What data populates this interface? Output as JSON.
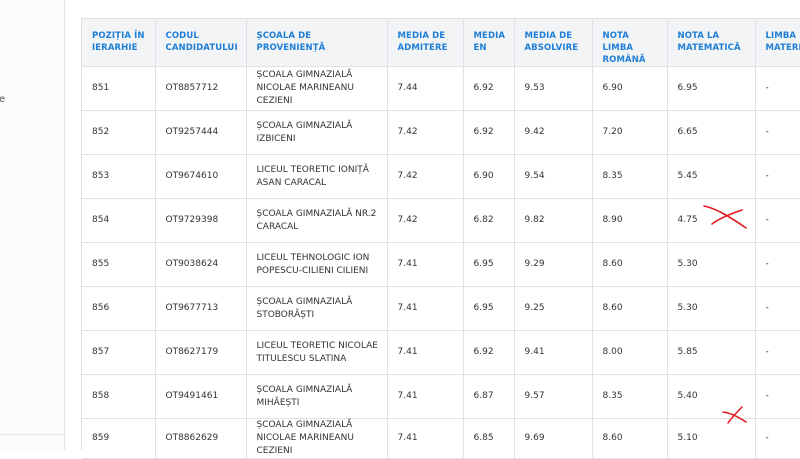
{
  "left_panel": {
    "fragment": "e"
  },
  "table": {
    "headers": [
      "Poziția în ierarhie",
      "Codul candidatului",
      "Școala de proveniență",
      "Media de admitere",
      "Media EN",
      "Media de absolvire",
      "Nota limba română",
      "Nota la matematică",
      "Limba materna"
    ],
    "rows": [
      [
        "851",
        "OT8857712",
        "ȘCOALA GIMNAZIALĂ NICOLAE MARINEANU CEZIENI",
        "7.44",
        "6.92",
        "9.53",
        "6.90",
        "6.95",
        "-"
      ],
      [
        "852",
        "OT9257444",
        "ȘCOALA GIMNAZIALĂ IZBICENI",
        "7.42",
        "6.92",
        "9.42",
        "7.20",
        "6.65",
        "-"
      ],
      [
        "853",
        "OT9674610",
        "LICEUL TEORETIC IONIȚĂ ASAN CARACAL",
        "7.42",
        "6.90",
        "9.54",
        "8.35",
        "5.45",
        "-"
      ],
      [
        "854",
        "OT9729398",
        "ȘCOALA GIMNAZIALĂ NR.2 CARACAL",
        "7.42",
        "6.82",
        "9.82",
        "8.90",
        "4.75",
        "-"
      ],
      [
        "855",
        "OT9038624",
        "LICEUL TEHNOLOGIC ION POPESCU-CILIENI CILIENI",
        "7.41",
        "6.95",
        "9.29",
        "8.60",
        "5.30",
        "-"
      ],
      [
        "856",
        "OT9677713",
        "ȘCOALA GIMNAZIALĂ STOBORĂȘTI",
        "7.41",
        "6.95",
        "9.25",
        "8.60",
        "5.30",
        "-"
      ],
      [
        "857",
        "OT8627179",
        "LICEUL TEORETIC NICOLAE TITULESCU SLATINA",
        "7.41",
        "6.92",
        "9.41",
        "8.00",
        "5.85",
        "-"
      ],
      [
        "858",
        "OT9491461",
        "ȘCOALA GIMNAZIALĂ MIHĂEȘTI",
        "7.41",
        "6.87",
        "9.57",
        "8.35",
        "5.40",
        "-"
      ],
      [
        "859",
        "OT8862629",
        "ȘCOALA GIMNAZIALĂ NICOLAE MARINEANU CEZIENI",
        "7.41",
        "6.85",
        "9.69",
        "8.60",
        "5.10",
        "-"
      ]
    ]
  },
  "annotations": {
    "mark_color": "#e0191e"
  }
}
